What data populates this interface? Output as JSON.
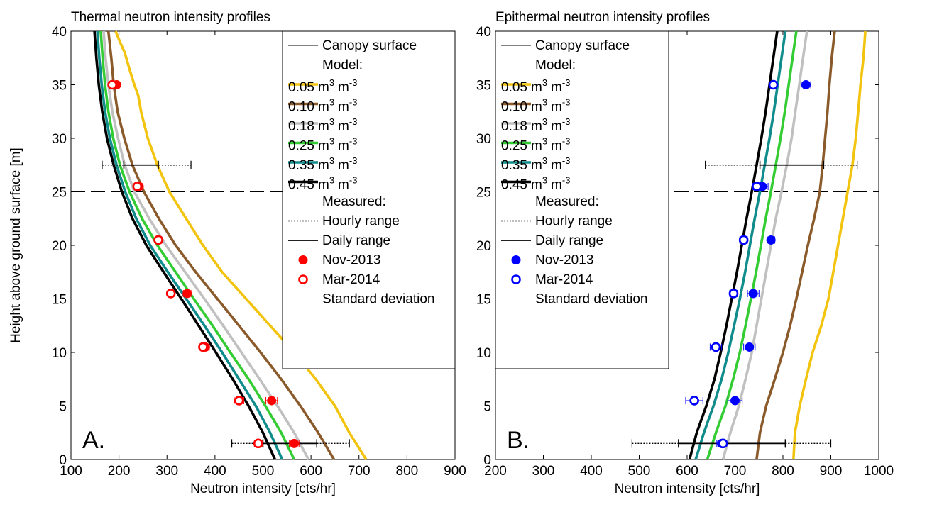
{
  "chart_data": [
    {
      "type": "line",
      "panel_label": "A.",
      "title": "Thermal neutron intensity profiles",
      "xlabel": "Neutron intensity [cts/hr]",
      "ylabel": "Height above ground surface [m]",
      "xlim": [
        100,
        900
      ],
      "ylim": [
        0,
        40
      ],
      "xticks": [
        100,
        200,
        300,
        400,
        500,
        600,
        700,
        800,
        900
      ],
      "yticks": [
        0,
        5,
        10,
        15,
        20,
        25,
        30,
        35,
        40
      ],
      "grid": false,
      "legend_position": "top-right",
      "canopy_height": 25,
      "series": [
        {
          "name": "0.05 m³ m⁻³",
          "color": "#f2c40f",
          "x": [
            715,
            680,
            650,
            610,
            565,
            515,
            465,
            415,
            375,
            340,
            305,
            280,
            260,
            246,
            240,
            232,
            225,
            212,
            202,
            193
          ],
          "y": [
            0,
            2.5,
            5,
            7.5,
            10,
            12.5,
            15,
            17.5,
            20,
            22.5,
            25,
            27.5,
            30,
            32.5,
            34,
            35,
            36,
            38,
            39,
            40
          ]
        },
        {
          "name": "0.10 m³ m⁻³",
          "color": "#8b5a2b",
          "x": [
            648,
            615,
            578,
            538,
            495,
            450,
            405,
            360,
            318,
            283,
            252,
            228,
            211,
            197,
            189,
            184,
            178
          ],
          "y": [
            0,
            2.5,
            5,
            7.5,
            10,
            12.5,
            15,
            17.5,
            20,
            22.5,
            25,
            27.5,
            30,
            32.5,
            35,
            37.5,
            40
          ]
        },
        {
          "name": "0.18 m³ m⁻³",
          "color": "#c0c0c0",
          "x": [
            595,
            565,
            530,
            493,
            455,
            417,
            378,
            338,
            298,
            263,
            232,
            212,
            198,
            186,
            178,
            172,
            168
          ],
          "y": [
            0,
            2.5,
            5,
            7.5,
            10,
            12.5,
            15,
            17.5,
            20,
            22.5,
            25,
            27.5,
            30,
            32.5,
            35,
            37.5,
            40
          ]
        },
        {
          "name": "0.25 m³ m⁻³",
          "color": "#33cc33",
          "x": [
            565,
            538,
            505,
            470,
            432,
            395,
            356,
            318,
            280,
            248,
            222,
            202,
            188,
            178,
            171,
            166,
            162
          ],
          "y": [
            0,
            2.5,
            5,
            7.5,
            10,
            12.5,
            15,
            17.5,
            20,
            22.5,
            25,
            27.5,
            30,
            32.5,
            35,
            37.5,
            40
          ]
        },
        {
          "name": "0.35 m³ m⁻³",
          "color": "#118c8c",
          "x": [
            540,
            515,
            485,
            450,
            415,
            378,
            340,
            302,
            265,
            236,
            213,
            195,
            181,
            171,
            164,
            159,
            155
          ],
          "y": [
            0,
            2.5,
            5,
            7.5,
            10,
            12.5,
            15,
            17.5,
            20,
            22.5,
            25,
            27.5,
            30,
            32.5,
            35,
            37.5,
            40
          ]
        },
        {
          "name": "0.45 m³ m⁻³",
          "color": "#000000",
          "x": [
            525,
            500,
            470,
            437,
            402,
            366,
            330,
            293,
            257,
            228,
            206,
            189,
            175,
            165,
            158,
            153,
            149
          ],
          "y": [
            0,
            2.5,
            5,
            7.5,
            10,
            12.5,
            15,
            17.5,
            20,
            22.5,
            25,
            27.5,
            30,
            32.5,
            35,
            37.5,
            40
          ]
        }
      ],
      "measured": {
        "color": "#ff0000",
        "nov2013": {
          "name": "Nov-2013",
          "y": [
            1.5,
            5.5,
            10.5,
            15.5,
            20.5,
            25.5,
            35
          ],
          "x": [
            565,
            518,
            380,
            342,
            283,
            242,
            195
          ],
          "sd": [
            10,
            12,
            8,
            8,
            6,
            6,
            6
          ]
        },
        "mar2014": {
          "name": "Mar-2014",
          "y": [
            1.5,
            5.5,
            10.5,
            15.5,
            20.5,
            25.5,
            35
          ],
          "x": [
            490,
            450,
            375,
            308,
            282,
            238,
            186
          ],
          "sd": [
            8,
            10,
            6,
            6,
            5,
            5,
            5
          ]
        },
        "ranges": [
          {
            "y": 27.5,
            "hourly": [
              165,
              350
            ],
            "daily": [
              210,
              282
            ]
          },
          {
            "y": 1.5,
            "hourly": [
              435,
              680
            ],
            "daily": [
              500,
              612
            ]
          }
        ]
      }
    },
    {
      "type": "line",
      "panel_label": "B.",
      "title": "Epithermal neutron intensity profiles",
      "xlabel": "Neutron intensity [cts/hr]",
      "ylabel": "",
      "xlim": [
        200,
        1000
      ],
      "ylim": [
        0,
        40
      ],
      "xticks": [
        200,
        300,
        400,
        500,
        600,
        700,
        800,
        900,
        1000
      ],
      "yticks": [
        0,
        5,
        10,
        15,
        20,
        25,
        30,
        35,
        40
      ],
      "grid": false,
      "legend_position": "top-left",
      "canopy_height": 25,
      "series": [
        {
          "name": "0.05 m³ m⁻³",
          "color": "#f2c40f",
          "x": [
            822,
            825,
            835,
            848,
            862,
            880,
            895,
            905,
            915,
            925,
            935,
            945,
            952,
            957,
            962,
            968,
            972
          ],
          "y": [
            0,
            2.5,
            5,
            7.5,
            10,
            12.5,
            15,
            17.5,
            20,
            22.5,
            25,
            27.5,
            30,
            32.5,
            35,
            37.5,
            40
          ]
        },
        {
          "name": "0.10 m³ m⁻³",
          "color": "#8b5a2b",
          "x": [
            745,
            752,
            765,
            783,
            800,
            815,
            828,
            840,
            852,
            865,
            877,
            883,
            888,
            893,
            897,
            902,
            908
          ],
          "y": [
            0,
            2.5,
            5,
            7.5,
            10,
            12.5,
            15,
            17.5,
            20,
            22.5,
            25,
            27.5,
            30,
            32.5,
            35,
            37.5,
            40
          ]
        },
        {
          "name": "0.18 m³ m⁻³",
          "color": "#c0c0c0",
          "x": [
            675,
            690,
            708,
            722,
            735,
            745,
            755,
            765,
            775,
            785,
            797,
            808,
            818,
            826,
            834,
            842,
            850
          ],
          "y": [
            0,
            2.5,
            5,
            7.5,
            10,
            12.5,
            15,
            17.5,
            20,
            22.5,
            25,
            27.5,
            30,
            32.5,
            35,
            37.5,
            40
          ]
        },
        {
          "name": "0.25 m³ m⁻³",
          "color": "#33cc33",
          "x": [
            642,
            660,
            680,
            696,
            710,
            722,
            733,
            744,
            754,
            764,
            775,
            785,
            795,
            804,
            812,
            820,
            828
          ],
          "y": [
            0,
            2.5,
            5,
            7.5,
            10,
            12.5,
            15,
            17.5,
            20,
            22.5,
            25,
            27.5,
            30,
            32.5,
            35,
            37.5,
            40
          ]
        },
        {
          "name": "0.35 m³ m⁻³",
          "color": "#118c8c",
          "x": [
            618,
            635,
            655,
            672,
            686,
            698,
            710,
            721,
            731,
            741,
            752,
            762,
            772,
            781,
            789,
            797,
            805
          ],
          "y": [
            0,
            2.5,
            5,
            7.5,
            10,
            12.5,
            15,
            17.5,
            20,
            22.5,
            25,
            27.5,
            30,
            32.5,
            35,
            37.5,
            40
          ]
        },
        {
          "name": "0.45 m³ m⁻³",
          "color": "#000000",
          "x": [
            605,
            620,
            640,
            657,
            670,
            682,
            693,
            704,
            714,
            724,
            735,
            745,
            755,
            764,
            772,
            780,
            788
          ],
          "y": [
            0,
            2.5,
            5,
            7.5,
            10,
            12.5,
            15,
            17.5,
            20,
            22.5,
            25,
            27.5,
            30,
            32.5,
            35,
            37.5,
            40
          ]
        }
      ],
      "measured": {
        "color": "#0000ff",
        "nov2013": {
          "name": "Nov-2013",
          "y": [
            1.5,
            5.5,
            10.5,
            15.5,
            20.5,
            25.5,
            35
          ],
          "x": [
            672,
            700,
            730,
            738,
            775,
            757,
            848
          ],
          "sd": [
            10,
            15,
            12,
            12,
            8,
            12,
            10
          ]
        },
        "mar2014": {
          "name": "Mar-2014",
          "y": [
            1.5,
            5.5,
            10.5,
            15.5,
            20.5,
            25.5,
            35
          ],
          "x": [
            675,
            615,
            660,
            697,
            718,
            745,
            780
          ],
          "sd": [
            10,
            18,
            12,
            8,
            8,
            8,
            6
          ]
        },
        "ranges": [
          {
            "y": 27.5,
            "hourly": [
              638,
              955
            ],
            "daily": [
              752,
              885
            ]
          },
          {
            "y": 1.5,
            "hourly": [
              485,
              900
            ],
            "daily": [
              582,
              805
            ]
          }
        ]
      }
    }
  ],
  "legend": {
    "canopy": "Canopy surface",
    "model_header": "Model:",
    "model_items": [
      {
        "value": "0.05",
        "unit_a": "m",
        "exp_a": "3",
        "unit_b": "m",
        "exp_b": "-3"
      },
      {
        "value": "0.10",
        "unit_a": "m",
        "exp_a": "3",
        "unit_b": "m",
        "exp_b": "-3"
      },
      {
        "value": "0.18",
        "unit_a": "m",
        "exp_a": "3",
        "unit_b": "m",
        "exp_b": "-3"
      },
      {
        "value": "0.25",
        "unit_a": "m",
        "exp_a": "3",
        "unit_b": "m",
        "exp_b": "-3"
      },
      {
        "value": "0.35",
        "unit_a": "m",
        "exp_a": "3",
        "unit_b": "m",
        "exp_b": "-3"
      },
      {
        "value": "0.45",
        "unit_a": "m",
        "exp_a": "3",
        "unit_b": "m",
        "exp_b": "-3"
      }
    ],
    "measured_header": "Measured:",
    "hourly": "Hourly range",
    "daily": "Daily range",
    "nov": "Nov-2013",
    "mar": "Mar-2014",
    "sd": "Standard deviation"
  }
}
